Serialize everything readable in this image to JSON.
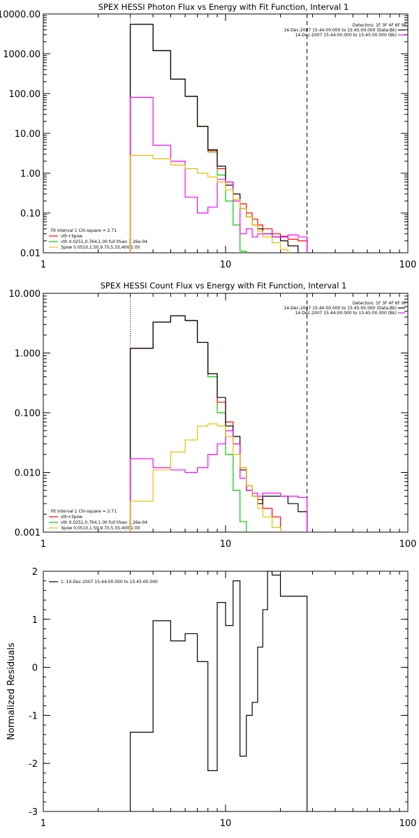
{
  "chart_data": [
    {
      "type": "line",
      "title": "SPEX HESSI Photon Flux vs Energy with Fit Function, Interval 1",
      "xscale": "log",
      "yscale": "log",
      "xlim": [
        1,
        100
      ],
      "ylim": [
        0.01,
        10000
      ],
      "xticks": [
        {
          "v": 1,
          "label": "1"
        },
        {
          "v": 10,
          "label": "10"
        },
        {
          "v": 100,
          "label": "100"
        }
      ],
      "yticks": [
        {
          "v": 0.01,
          "label": "0.01"
        },
        {
          "v": 0.1,
          "label": "0.10"
        },
        {
          "v": 1,
          "label": "1.00"
        },
        {
          "v": 10,
          "label": "10.00"
        },
        {
          "v": 100,
          "label": "100.00"
        },
        {
          "v": 1000,
          "label": "1000.00"
        },
        {
          "v": 10000,
          "label": "10000.00"
        }
      ],
      "vlines": [
        {
          "x": 3,
          "style": "dotted",
          "color": "#000000"
        },
        {
          "x": 28,
          "style": "dashed",
          "color": "#000000"
        }
      ],
      "header_lines": [
        {
          "text": "Detectors: 1F 3F 4F 6F 9F",
          "swatch": ""
        },
        {
          "text": "14-Dec-2007 15:44:00.000 to 15:45:00.000 (Data-Bk)",
          "swatch": "#000000"
        },
        {
          "text": "14-Dec-2007 15:44:00.000 to 15:45:00.000 (Bk)",
          "swatch": "#ff00ff"
        }
      ],
      "legend_title": "Fit Interval  1    Chi-square = 2.71",
      "legend": [
        {
          "label": "vth+3pow",
          "color": "#ff0000"
        },
        {
          "label": "vth 0.0251,0.764,1.00  full thian 1.26e-04",
          "color": "#00cc00"
        },
        {
          "label": "3pow 0.0510,1.50,9.70,5.55,400,1.00",
          "color": "#e6c000"
        }
      ],
      "edges": [
        3,
        4,
        5,
        6,
        7,
        8,
        9,
        10,
        11,
        12,
        13,
        14,
        15,
        16,
        18,
        20,
        22,
        25,
        28
      ],
      "series": [
        {
          "color": "#00cc00",
          "values": [
            5500,
            1200,
            230,
            85,
            15,
            3.4,
            0.9,
            0.2,
            0.05,
            0.011,
            null,
            null,
            null,
            null,
            null,
            null,
            null,
            null
          ]
        },
        {
          "color": "#ff0000",
          "values": [
            5500,
            1200,
            230,
            85,
            15,
            3.7,
            1.3,
            0.6,
            0.3,
            0.17,
            0.1,
            0.07,
            0.05,
            0.04,
            0.03,
            0.026,
            0.022,
            0.02
          ]
        },
        {
          "color": "#000000",
          "values": [
            5500,
            1200,
            230,
            85,
            15,
            3.9,
            1.5,
            0.5,
            0.3,
            0.13,
            0.08,
            0.05,
            0.04,
            0.03,
            0.025,
            0.02,
            0.015,
            null
          ]
        },
        {
          "color": "#ff00ff",
          "values": [
            80,
            5,
            2,
            0.25,
            0.1,
            0.14,
            0.7,
            0.6,
            0.2,
            0.03,
            0.04,
            0.025,
            0.03,
            0.03,
            0.025,
            0.025,
            0.028,
            0.025
          ]
        },
        {
          "color": "#e6c000",
          "values": [
            2.8,
            2.3,
            1.6,
            1.3,
            1.0,
            0.8,
            0.6,
            0.38,
            0.22,
            0.13,
            0.08,
            0.05,
            0.035,
            0.025,
            0.018,
            0.012,
            null,
            null
          ]
        }
      ]
    },
    {
      "type": "line",
      "title": "SPEX HESSI Count Flux vs Energy with Fit Function, Interval 1",
      "xscale": "log",
      "yscale": "log",
      "xlim": [
        1,
        100
      ],
      "ylim": [
        0.001,
        10
      ],
      "xticks": [
        {
          "v": 1,
          "label": "1"
        },
        {
          "v": 10,
          "label": "10"
        },
        {
          "v": 100,
          "label": "100"
        }
      ],
      "yticks": [
        {
          "v": 0.001,
          "label": "0.001"
        },
        {
          "v": 0.01,
          "label": "0.010"
        },
        {
          "v": 0.1,
          "label": "0.100"
        },
        {
          "v": 1,
          "label": "1.000"
        },
        {
          "v": 10,
          "label": "10.000"
        }
      ],
      "vlines": [
        {
          "x": 3,
          "style": "dotted",
          "color": "#000000"
        },
        {
          "x": 28,
          "style": "dashed",
          "color": "#000000"
        }
      ],
      "header_lines": [
        {
          "text": "Detectors: 1F 3F 4F 6F 9F",
          "swatch": ""
        },
        {
          "text": "14-Dec-2007 15:44:00.000 to 15:45:00.000 (Data-Bk)",
          "swatch": "#000000"
        },
        {
          "text": "14-Dec-2007 15:44:00.000 to 15:45:00.000 (Bk)",
          "swatch": "#ff00ff"
        }
      ],
      "legend_title": "Fit Interval  1    Chi-square = 2.71",
      "legend": [
        {
          "label": "vth+3pow",
          "color": "#ff0000"
        },
        {
          "label": "vth 0.0251,0.764,1.00  full thian 1.26e-04",
          "color": "#00cc00"
        },
        {
          "label": "3pow 0.0510,1.50,9.70,5.55,400,1.00",
          "color": "#e6c000"
        }
      ],
      "edges": [
        3,
        4,
        5,
        6,
        7,
        8,
        9,
        10,
        11,
        12,
        13,
        14,
        15,
        16,
        18,
        20,
        22,
        25,
        28
      ],
      "series": [
        {
          "color": "#00cc00",
          "values": [
            1.2,
            3.3,
            4.2,
            3.5,
            1.5,
            0.4,
            0.1,
            0.02,
            0.005,
            0.0015,
            null,
            null,
            null,
            null,
            null,
            null,
            null,
            null
          ]
        },
        {
          "color": "#ff0000",
          "values": [
            1.2,
            3.3,
            4.2,
            3.5,
            1.5,
            0.45,
            0.15,
            0.07,
            0.03,
            0.012,
            0.006,
            0.004,
            0.0035,
            0.0025,
            0.0018,
            null,
            null,
            null
          ]
        },
        {
          "color": "#000000",
          "values": [
            1.2,
            3.3,
            4.2,
            3.5,
            1.5,
            0.45,
            0.18,
            0.06,
            0.04,
            0.011,
            0.005,
            0.004,
            0.003,
            0.004,
            0.004,
            0.004,
            0.003,
            0.0022
          ]
        },
        {
          "color": "#ff00ff",
          "values": [
            0.017,
            0.012,
            0.011,
            0.01,
            0.012,
            0.02,
            0.03,
            0.05,
            0.03,
            0.008,
            0.005,
            0.0045,
            0.004,
            0.0045,
            0.0045,
            0.004,
            0.004,
            0.0038
          ]
        },
        {
          "color": "#e6c000",
          "values": [
            0.0033,
            0.011,
            0.022,
            0.035,
            0.06,
            0.065,
            0.06,
            0.04,
            0.02,
            0.012,
            0.006,
            0.004,
            0.0025,
            0.0018,
            0.0012,
            null,
            null,
            null
          ]
        }
      ]
    },
    {
      "type": "line",
      "title": "",
      "xscale": "log",
      "yscale": "linear",
      "xlim": [
        1,
        100
      ],
      "ylim": [
        -3,
        2
      ],
      "ylabel": "Normalized Residuals",
      "xticks": [
        {
          "v": 1,
          "label": "1"
        },
        {
          "v": 10,
          "label": "10"
        },
        {
          "v": 100,
          "label": "100"
        }
      ],
      "yticks": [
        {
          "v": -3,
          "label": "-3"
        },
        {
          "v": -2,
          "label": "-2"
        },
        {
          "v": -1,
          "label": "-1"
        },
        {
          "v": 0,
          "label": "0"
        },
        {
          "v": 1,
          "label": "1"
        },
        {
          "v": 2,
          "label": "2"
        }
      ],
      "legend": [
        {
          "label": "1. 14-Dec-2007 15:44:00.000 to 15:45:00.000",
          "color": "#000000"
        }
      ],
      "edges": [
        3,
        3.3,
        4,
        5,
        6,
        7,
        8,
        9,
        10,
        11,
        12,
        13,
        14,
        15,
        16,
        17,
        18,
        20,
        22,
        25,
        28
      ],
      "series": [
        {
          "color": "#000000",
          "start": -3.1,
          "end": -3.1,
          "values": [
            -1.35,
            -1.35,
            0.97,
            0.55,
            0.7,
            0.12,
            -2.15,
            1.35,
            0.87,
            1.8,
            -1.85,
            -1.0,
            -0.73,
            0.42,
            1.2,
            2.05,
            1.92,
            1.48,
            1.48,
            1.48
          ]
        }
      ]
    }
  ]
}
